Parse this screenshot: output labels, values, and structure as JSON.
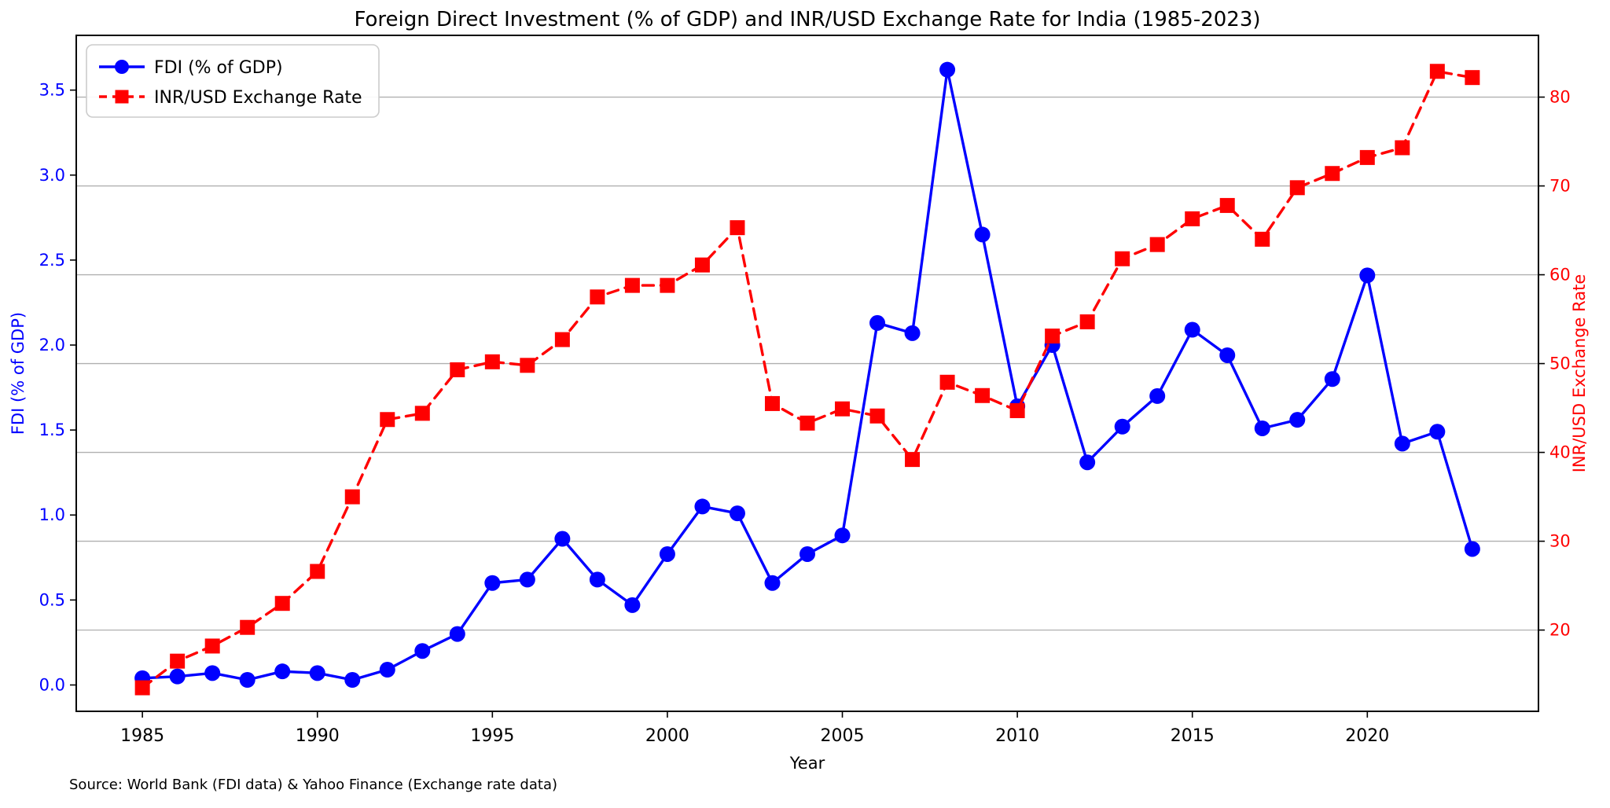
{
  "title": "Foreign Direct Investment (% of GDP) and INR/USD Exchange Rate for India (1985-2023)",
  "source_note": "Source: World Bank (FDI data) & Yahoo Finance (Exchange rate data)",
  "colors": {
    "fdi_blue": "#0000ff",
    "rate_red": "#ff0000",
    "grid_gray": "#b0b0b0",
    "spine_black": "#000000",
    "tick_text_black": "#000000",
    "legend_border": "#cccccc"
  },
  "legend": {
    "items": [
      {
        "label": "FDI (% of GDP)",
        "marker": "circle",
        "line": "solid"
      },
      {
        "label": "INR/USD Exchange Rate",
        "marker": "square",
        "line": "dashed"
      }
    ]
  },
  "chart_data": {
    "type": "line",
    "title": "Foreign Direct Investment (% of GDP) and INR/USD Exchange Rate for India (1985-2023)",
    "grid": "horizontal gridlines at right-axis ticks",
    "legend_position": "upper left",
    "x": [
      1985,
      1986,
      1987,
      1988,
      1989,
      1990,
      1991,
      1992,
      1993,
      1994,
      1995,
      1996,
      1997,
      1998,
      1999,
      2000,
      2001,
      2002,
      2003,
      2004,
      2005,
      2006,
      2007,
      2008,
      2009,
      2010,
      2011,
      2012,
      2013,
      2014,
      2015,
      2016,
      2017,
      2018,
      2019,
      2020,
      2021,
      2022,
      2023
    ],
    "series": [
      {
        "name": "FDI (% of GDP)",
        "axis": "left",
        "color": "#0000ff",
        "style": "solid",
        "marker": "circle",
        "values": [
          0.04,
          0.05,
          0.07,
          0.03,
          0.08,
          0.07,
          0.03,
          0.09,
          0.2,
          0.3,
          0.6,
          0.62,
          0.86,
          0.62,
          0.47,
          0.77,
          1.05,
          1.01,
          0.6,
          0.77,
          0.88,
          2.13,
          2.07,
          3.62,
          2.65,
          1.64,
          2.0,
          1.31,
          1.52,
          1.7,
          2.09,
          1.94,
          1.51,
          1.56,
          1.8,
          2.41,
          1.42,
          1.49,
          0.8
        ]
      },
      {
        "name": "INR/USD Exchange Rate",
        "axis": "right",
        "color": "#ff0000",
        "style": "dashed",
        "marker": "square",
        "values": [
          13.5,
          16.5,
          18.2,
          20.3,
          23.0,
          26.6,
          35.0,
          43.7,
          44.4,
          49.3,
          50.2,
          49.8,
          52.7,
          57.5,
          58.8,
          58.8,
          61.1,
          65.3,
          45.5,
          43.3,
          44.9,
          44.1,
          39.2,
          47.9,
          46.4,
          44.7,
          53.1,
          54.7,
          61.8,
          63.4,
          66.3,
          67.8,
          64.0,
          69.8,
          71.4,
          73.2,
          74.3,
          82.9,
          82.2
        ]
      }
    ],
    "x_axis": {
      "label": "Year",
      "ticks": [
        1985,
        1990,
        1995,
        2000,
        2005,
        2010,
        2015,
        2020
      ],
      "lim": [
        1983.11,
        2024.89
      ]
    },
    "left_axis": {
      "label": "FDI (% of GDP)",
      "color": "#0000ff",
      "ticks": [
        0.0,
        0.5,
        1.0,
        1.5,
        2.0,
        2.5,
        3.0,
        3.5
      ],
      "lim": [
        -0.155,
        3.822
      ]
    },
    "right_axis": {
      "label": "INR/USD Exchange Rate",
      "color": "#ff0000",
      "ticks": [
        20,
        30,
        40,
        50,
        60,
        70,
        80
      ],
      "lim": [
        10.85,
        86.95
      ]
    }
  }
}
